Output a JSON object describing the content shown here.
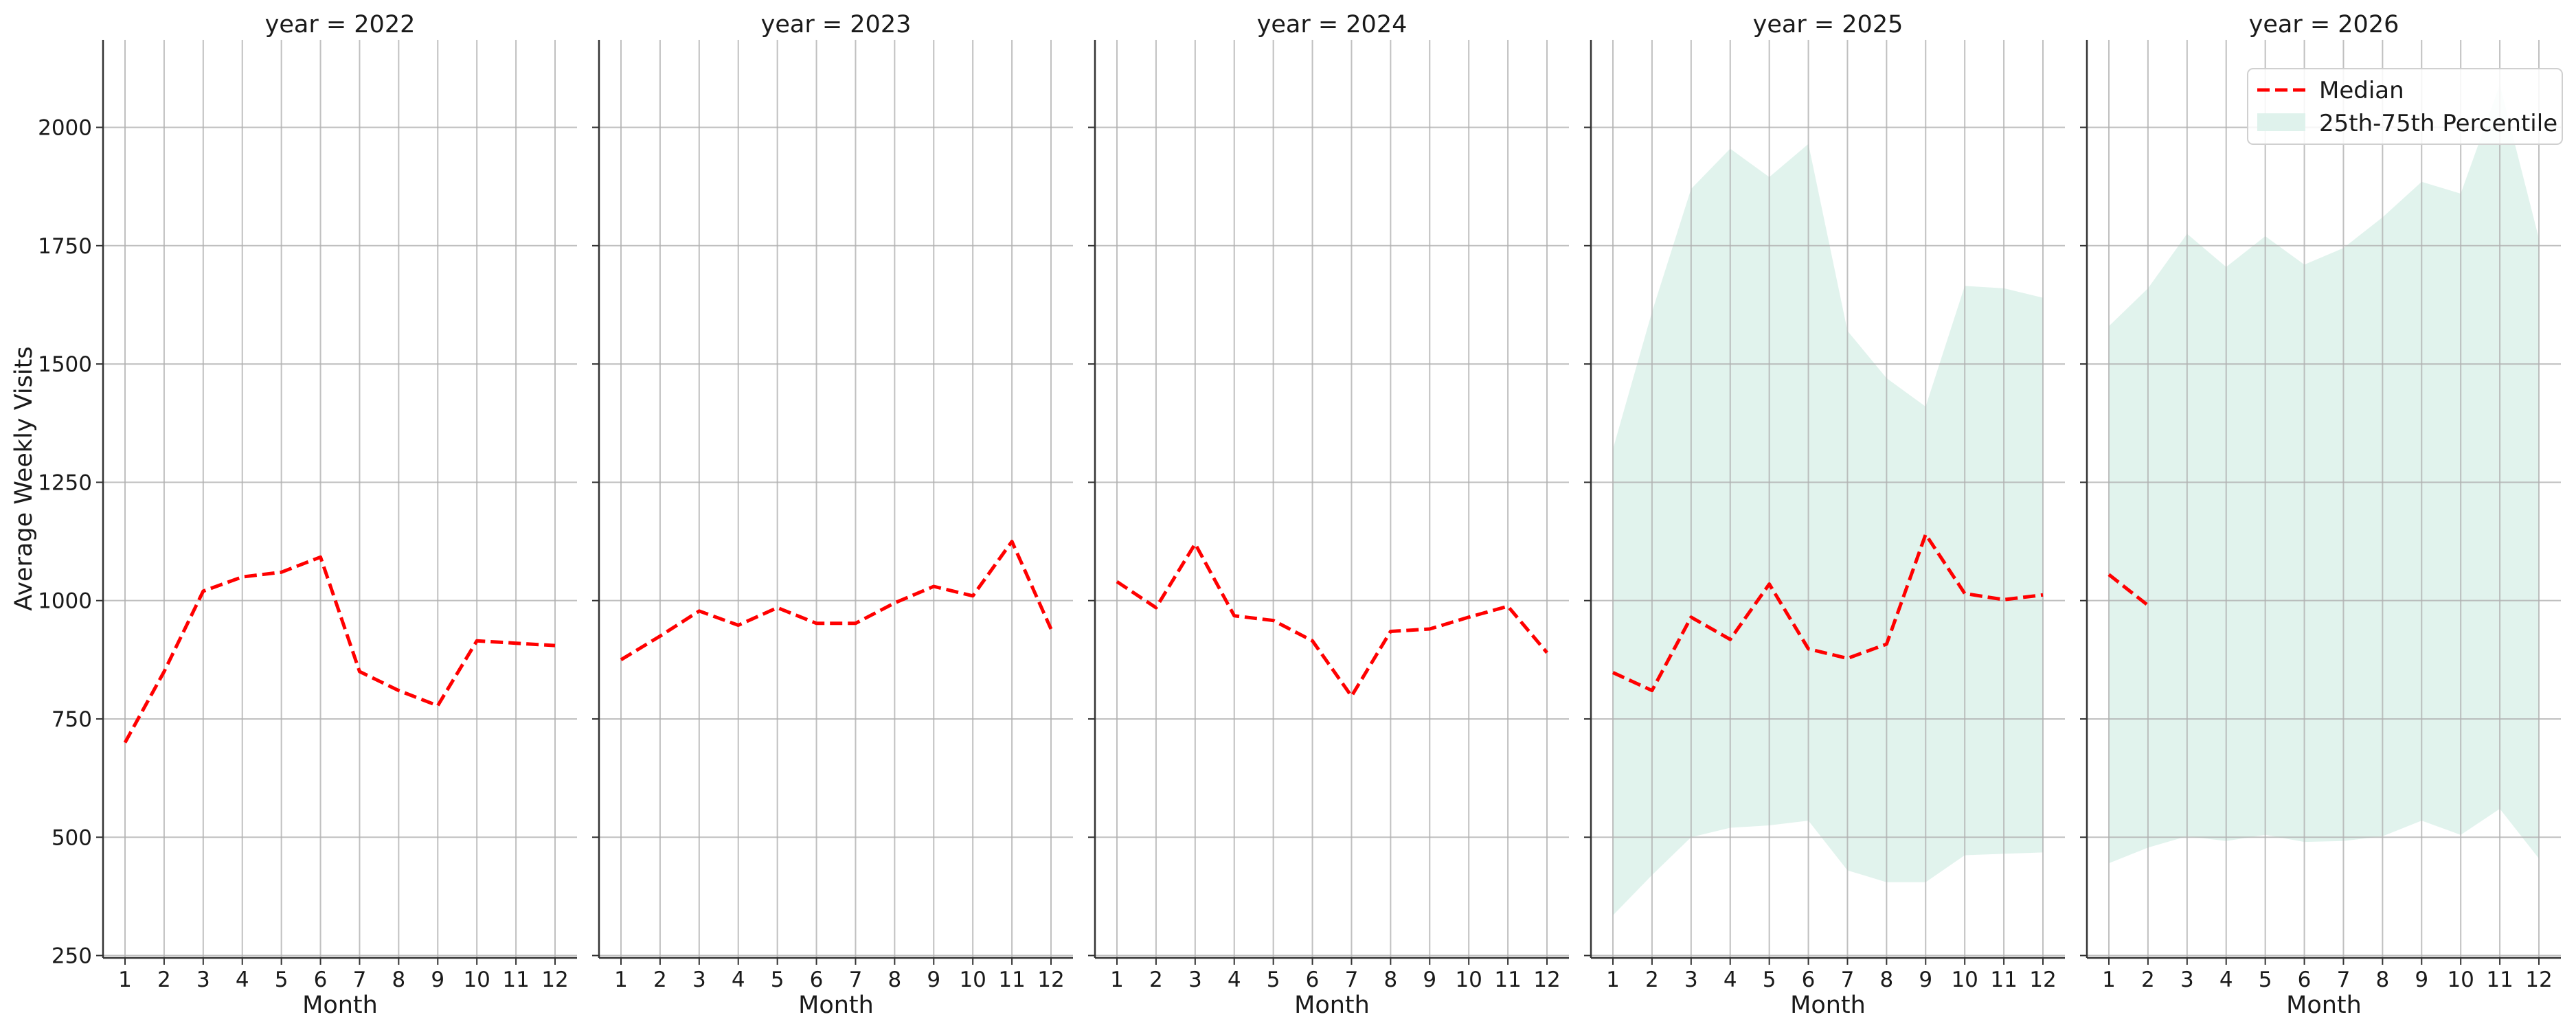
{
  "chart_data": {
    "type": "line",
    "ylabel": "Average Weekly Visits",
    "xlabel": "Month",
    "ylim": [
      245,
      2185
    ],
    "yticks": [
      250,
      500,
      750,
      1000,
      1250,
      1500,
      1750,
      2000
    ],
    "xticks": [
      1,
      2,
      3,
      4,
      5,
      6,
      7,
      8,
      9,
      10,
      11,
      12
    ],
    "grid": true,
    "legend": {
      "placement": "top-right",
      "entries": [
        "Median",
        "25th-75th Percentile"
      ]
    },
    "colors": {
      "median": "#ff0000",
      "band": "#dff2ec",
      "grid": "#b0b0b0",
      "axis": "#333333"
    },
    "panels": [
      {
        "title": "year = 2022",
        "median": {
          "x": [
            1,
            2,
            3,
            4,
            5,
            6,
            7,
            8,
            9,
            10,
            11,
            12
          ],
          "y": [
            700,
            850,
            1020,
            1050,
            1060,
            1092,
            850,
            810,
            778,
            915,
            910,
            905
          ]
        },
        "band": null
      },
      {
        "title": "year = 2023",
        "median": {
          "x": [
            1,
            2,
            3,
            4,
            5,
            6,
            7,
            8,
            9,
            10,
            11,
            12
          ],
          "y": [
            875,
            925,
            978,
            948,
            985,
            952,
            952,
            995,
            1030,
            1010,
            1125,
            940
          ]
        },
        "band": null
      },
      {
        "title": "year = 2024",
        "median": {
          "x": [
            1,
            2,
            3,
            4,
            5,
            6,
            7,
            8,
            9,
            10,
            11,
            12
          ],
          "y": [
            1040,
            985,
            1120,
            968,
            958,
            915,
            798,
            935,
            940,
            965,
            988,
            890
          ]
        },
        "band": null
      },
      {
        "title": "year = 2025",
        "median": {
          "x": [
            1,
            2,
            3,
            4,
            5,
            6,
            7,
            8,
            9,
            10,
            11,
            12
          ],
          "y": [
            848,
            810,
            965,
            918,
            1035,
            898,
            878,
            908,
            1140,
            1015,
            1002,
            1012
          ]
        },
        "band": {
          "x": [
            1,
            2,
            3,
            4,
            5,
            6,
            7,
            8,
            9,
            10,
            11,
            12
          ],
          "low": [
            335,
            420,
            500,
            520,
            525,
            535,
            430,
            405,
            405,
            462,
            465,
            468
          ],
          "high": [
            1320,
            1610,
            1870,
            1955,
            1895,
            1965,
            1570,
            1470,
            1410,
            1665,
            1660,
            1640
          ]
        }
      },
      {
        "title": "year = 2026",
        "median": {
          "x": [
            1,
            2
          ],
          "y": [
            1055,
            990
          ]
        },
        "band": {
          "x": [
            1,
            2,
            3,
            4,
            5,
            6,
            7,
            8,
            9,
            10,
            11,
            12
          ],
          "low": [
            445,
            478,
            502,
            492,
            505,
            490,
            492,
            502,
            535,
            505,
            560,
            455
          ],
          "high": [
            1580,
            1660,
            1775,
            1705,
            1770,
            1710,
            1745,
            1810,
            1885,
            1860,
            2090,
            1765
          ]
        }
      }
    ]
  }
}
